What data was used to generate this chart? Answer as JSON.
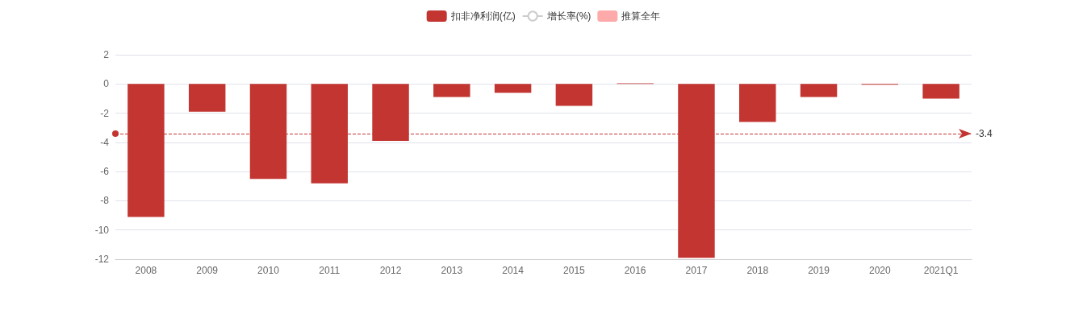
{
  "chart_data": {
    "type": "bar",
    "categories": [
      "2008",
      "2009",
      "2010",
      "2011",
      "2012",
      "2013",
      "2014",
      "2015",
      "2016",
      "2017",
      "2018",
      "2019",
      "2020",
      "2021Q1"
    ],
    "series": [
      {
        "name": "扣非净利润(亿)",
        "color": "#c23531",
        "values": [
          -9.1,
          -1.9,
          -6.5,
          -6.8,
          -3.9,
          -0.9,
          -0.6,
          -1.5,
          0.05,
          -11.9,
          -2.6,
          -0.9,
          -0.05,
          -1.0
        ]
      },
      {
        "name": "增长率(%)",
        "type": "line",
        "color": "#cccccc",
        "marker": "circle",
        "values": [
          null,
          null,
          null,
          null,
          null,
          null,
          null,
          null,
          null,
          null,
          null,
          null,
          null,
          null
        ]
      },
      {
        "name": "推算全年",
        "color": "#ffaaaa",
        "values": [
          null,
          null,
          null,
          null,
          null,
          null,
          null,
          null,
          null,
          null,
          null,
          null,
          null,
          null
        ]
      }
    ],
    "ylim": [
      -12,
      2
    ],
    "yticks": [
      -12,
      -10,
      -8,
      -6,
      -4,
      -2,
      0,
      2
    ],
    "grid": "y",
    "legend": "top",
    "ref_lines": [
      {
        "axis": "y",
        "value": -3.4,
        "label": "-3.4",
        "color": "#c23531",
        "line_style": "dashed"
      }
    ]
  }
}
